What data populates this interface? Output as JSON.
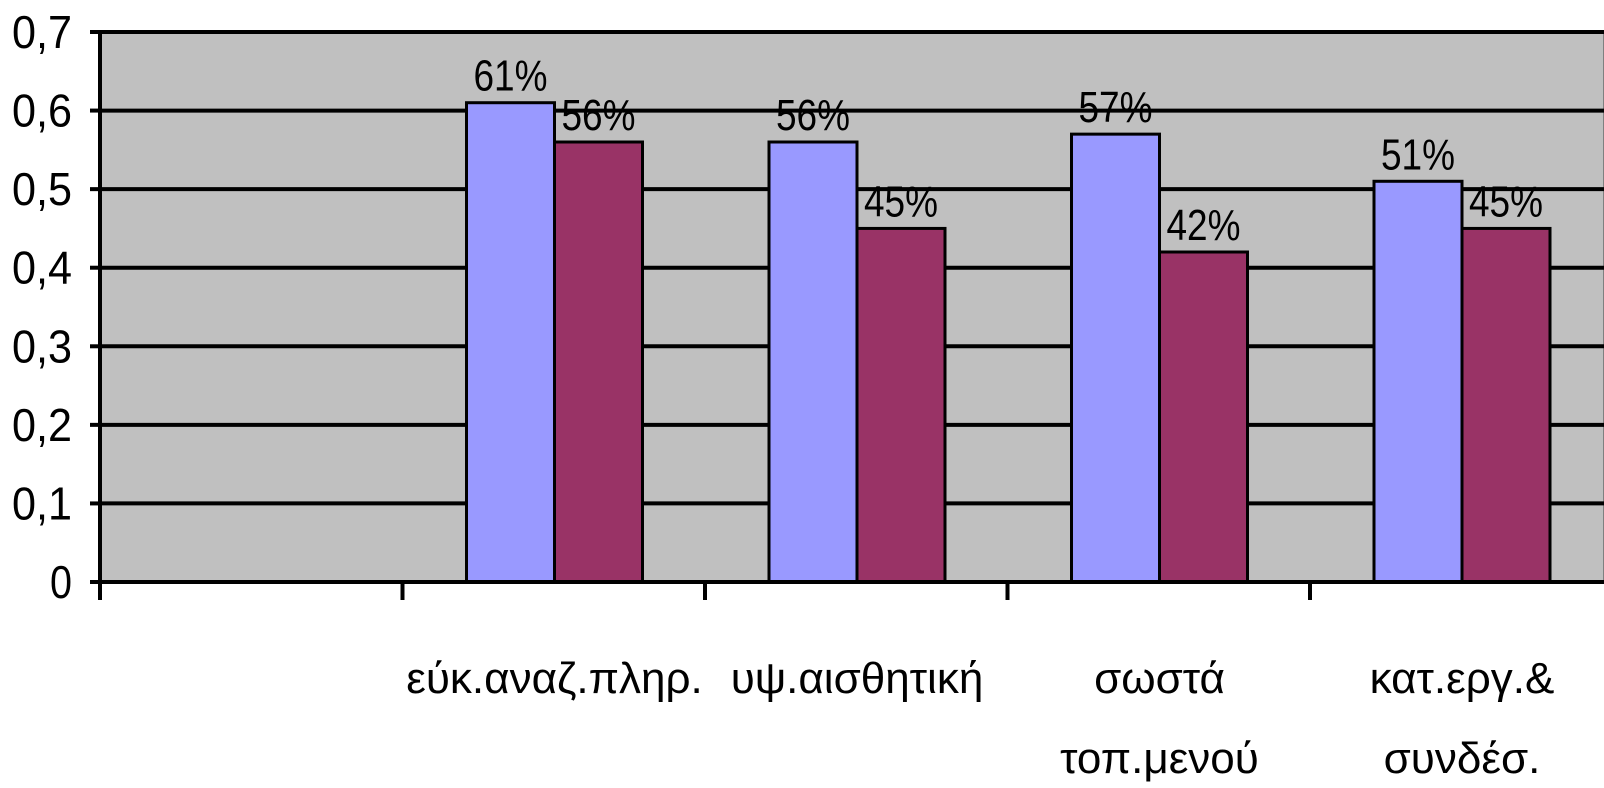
{
  "chart_data": {
    "type": "bar",
    "categories": [
      "",
      "εύκ.αναζ.πληρ.",
      "υψ.αισθητική",
      "σωστά τοπ.μενού",
      "κατ.εργ.& συνδέσ."
    ],
    "category_lines": [
      [],
      [
        "εύκ.αναζ.πληρ."
      ],
      [
        "υψ.αισθητική"
      ],
      [
        "σωστά",
        "τοπ.μενού"
      ],
      [
        "κατ.εργ.&",
        "συνδέσ."
      ]
    ],
    "series": [
      {
        "values": [
          null,
          0.61,
          0.56,
          0.57,
          0.51
        ],
        "labels": [
          "",
          "61%",
          "56%",
          "57%",
          "51%"
        ],
        "color": "#9999ff"
      },
      {
        "values": [
          null,
          0.56,
          0.45,
          0.42,
          0.45
        ],
        "labels": [
          "",
          "56%",
          "45%",
          "42%",
          "45%"
        ],
        "color": "#993366"
      }
    ],
    "ylim": [
      0,
      0.7
    ],
    "yticks": [
      "0",
      "0,1",
      "0,2",
      "0,3",
      "0,4",
      "0,5",
      "0,6",
      "0,7"
    ],
    "grid": true,
    "plot_background": "#c0c0c0",
    "title": "",
    "xlabel": "",
    "ylabel": ""
  }
}
